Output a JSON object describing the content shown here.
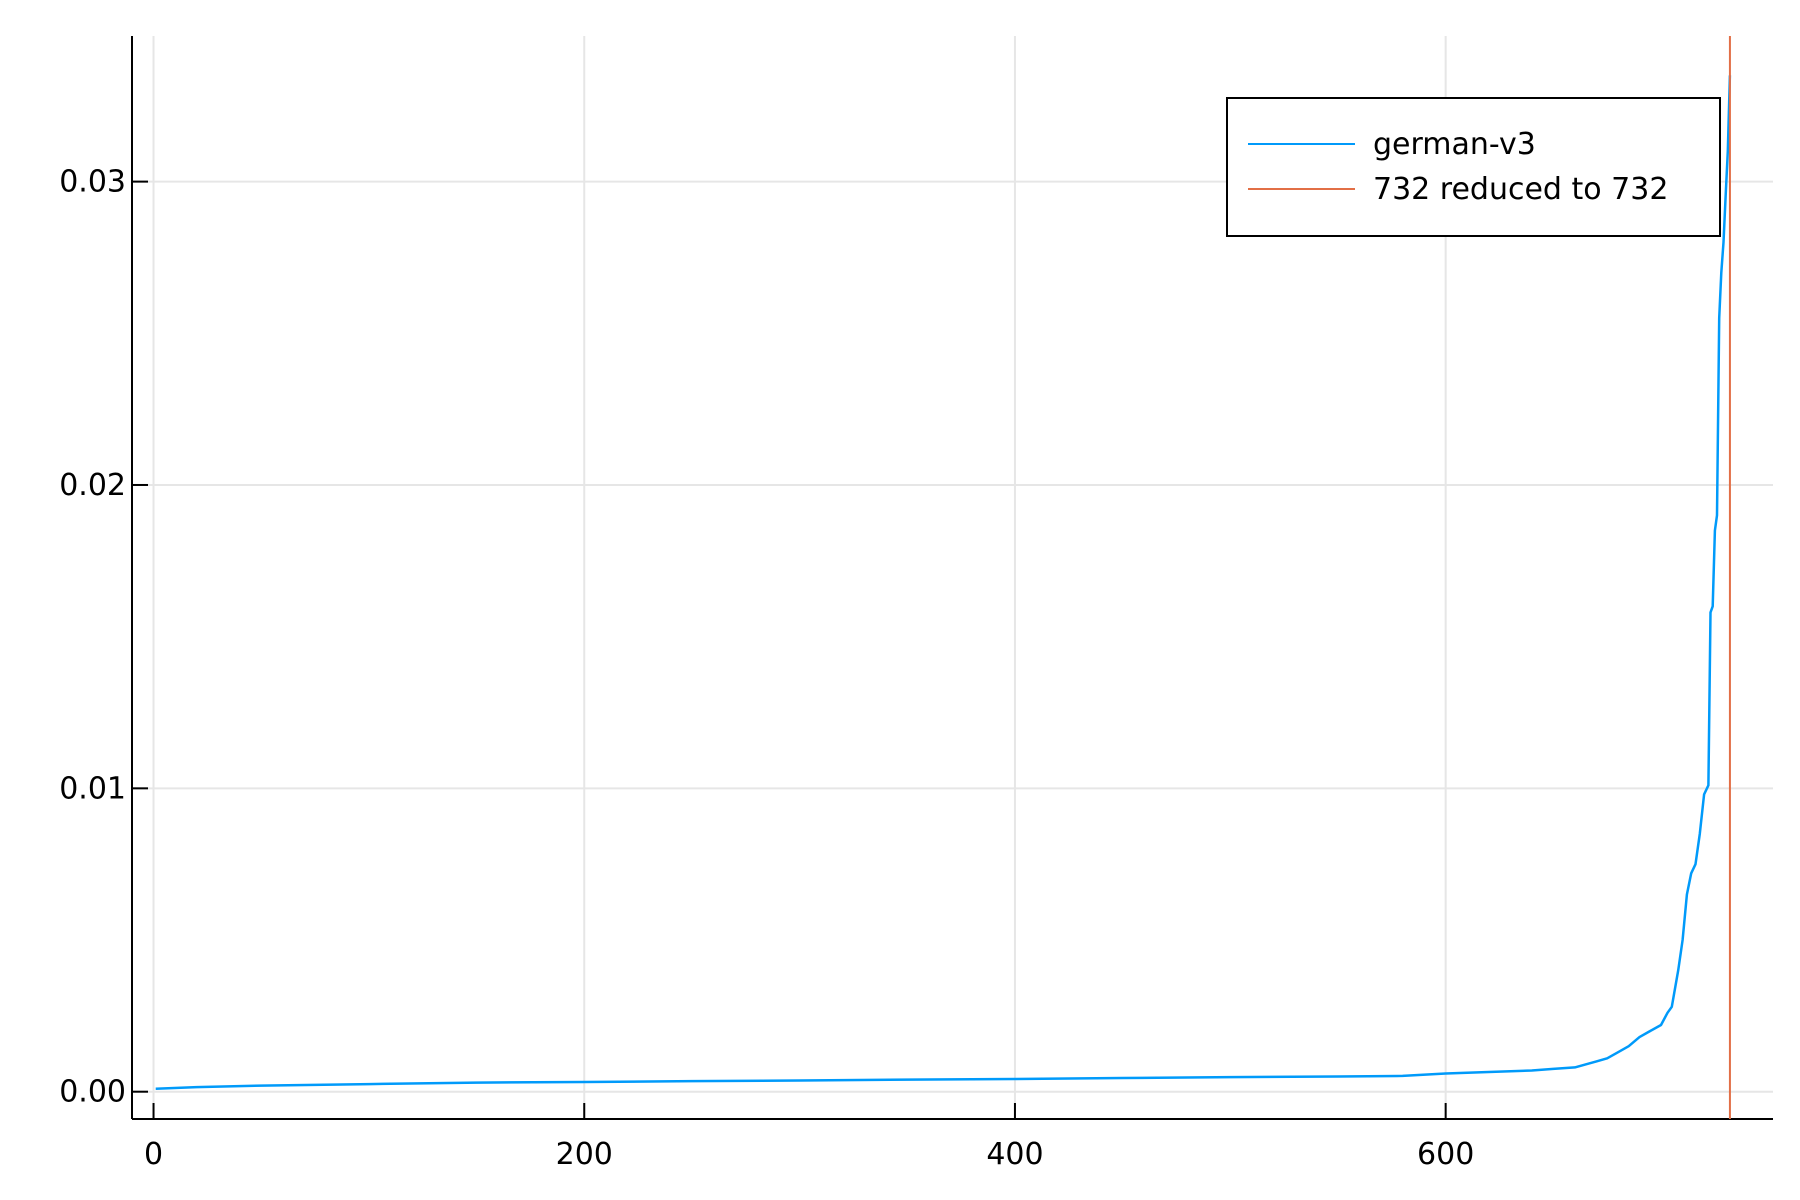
{
  "chart_data": {
    "type": "line",
    "title": "",
    "xlabel": "",
    "ylabel": "",
    "xlim": [
      -10,
      752
    ],
    "ylim": [
      -0.0009,
      0.0348
    ],
    "xticks": [
      0,
      200,
      400,
      600
    ],
    "xtick_labels": [
      "0",
      "200",
      "400",
      "600"
    ],
    "yticks": [
      0.0,
      0.01,
      0.02,
      0.03
    ],
    "ytick_labels": [
      "0.00",
      "0.01",
      "0.02",
      "0.03"
    ],
    "grid": true,
    "legend_position": "top-right",
    "series": [
      {
        "name": "german-v3",
        "color": "#009AFA",
        "kind": "line",
        "x": [
          1,
          20,
          50,
          100,
          150,
          200,
          250,
          300,
          350,
          400,
          450,
          500,
          550,
          580,
          600,
          620,
          640,
          650,
          660,
          665,
          670,
          675,
          680,
          685,
          690,
          695,
          700,
          703,
          705,
          708,
          710,
          712,
          714,
          716,
          718,
          720,
          722,
          723,
          724,
          725,
          726,
          727,
          728,
          729,
          730,
          731,
          732
        ],
        "y": [
          0.0001,
          0.00015,
          0.0002,
          0.00025,
          0.0003,
          0.00032,
          0.00035,
          0.00037,
          0.0004,
          0.00042,
          0.00045,
          0.00048,
          0.0005,
          0.00052,
          0.0006,
          0.00065,
          0.0007,
          0.00075,
          0.0008,
          0.0009,
          0.001,
          0.0011,
          0.0013,
          0.0015,
          0.0018,
          0.002,
          0.0022,
          0.0026,
          0.0028,
          0.004,
          0.005,
          0.0065,
          0.0072,
          0.0075,
          0.0085,
          0.0098,
          0.0101,
          0.0158,
          0.016,
          0.0185,
          0.019,
          0.0255,
          0.027,
          0.028,
          0.0295,
          0.031,
          0.0335
        ]
      },
      {
        "name": "732 reduced to 732",
        "color": "#E26F46",
        "kind": "vline",
        "x": 732
      }
    ]
  }
}
